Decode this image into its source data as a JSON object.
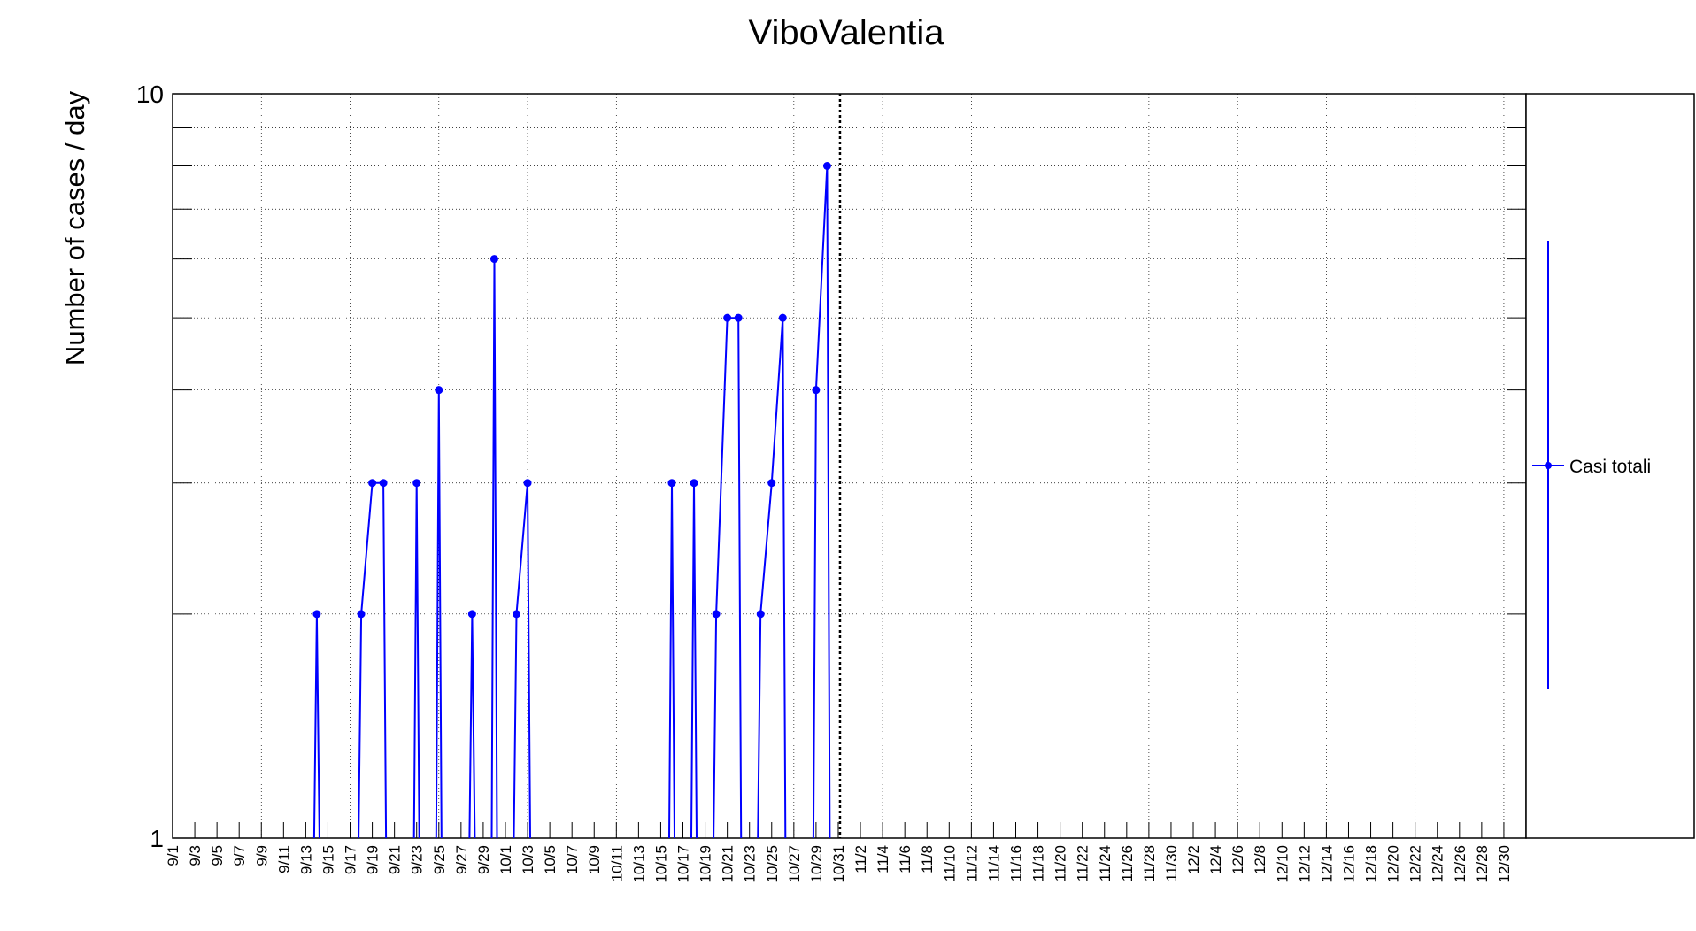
{
  "chart_data": {
    "type": "line",
    "title": "ViboValentia",
    "ylabel": "Number of cases / day",
    "xlabel": "",
    "y_scale": "log",
    "ylim": [
      1,
      10
    ],
    "y_tick_labels": [
      "1",
      "10"
    ],
    "xlim": [
      "2020-09-01",
      "2021-01-01"
    ],
    "x_tick_labels": [
      "9/1",
      "9/3",
      "9/5",
      "9/7",
      "9/9",
      "9/11",
      "9/13",
      "9/15",
      "9/17",
      "9/19",
      "9/21",
      "9/23",
      "9/25",
      "9/27",
      "9/29",
      "10/1",
      "10/3",
      "10/5",
      "10/7",
      "10/9",
      "10/11",
      "10/13",
      "10/15",
      "10/17",
      "10/19",
      "10/21",
      "10/23",
      "10/25",
      "10/27",
      "10/29",
      "10/31",
      "11/2",
      "11/4",
      "11/6",
      "11/8",
      "11/10",
      "11/12",
      "11/14",
      "11/16",
      "11/18",
      "11/20",
      "11/22",
      "11/24",
      "11/26",
      "11/28",
      "11/30",
      "12/2",
      "12/4",
      "12/6",
      "12/8",
      "12/10",
      "12/12",
      "12/14",
      "12/16",
      "12/18",
      "12/20",
      "12/22",
      "12/24",
      "12/26",
      "12/28",
      "12/30"
    ],
    "grid": true,
    "marker_line_date": "2020-10-31",
    "legend": {
      "position": "right",
      "entries": [
        "Casi totali"
      ]
    },
    "series": [
      {
        "name": "Casi totali",
        "color": "#0000ff",
        "points": [
          [
            "2020-09-14",
            2
          ],
          [
            "2020-09-18",
            2
          ],
          [
            "2020-09-19",
            3
          ],
          [
            "2020-09-20",
            3
          ],
          [
            "2020-09-23",
            3
          ],
          [
            "2020-09-25",
            4
          ],
          [
            "2020-09-28",
            2
          ],
          [
            "2020-09-30",
            6
          ],
          [
            "2020-10-02",
            2
          ],
          [
            "2020-10-03",
            3
          ],
          [
            "2020-10-16",
            3
          ],
          [
            "2020-10-18",
            3
          ],
          [
            "2020-10-20",
            2
          ],
          [
            "2020-10-21",
            5
          ],
          [
            "2020-10-22",
            5
          ],
          [
            "2020-10-24",
            2
          ],
          [
            "2020-10-25",
            3
          ],
          [
            "2020-10-26",
            5
          ],
          [
            "2020-10-29",
            4
          ],
          [
            "2020-10-30",
            8
          ]
        ]
      }
    ]
  }
}
